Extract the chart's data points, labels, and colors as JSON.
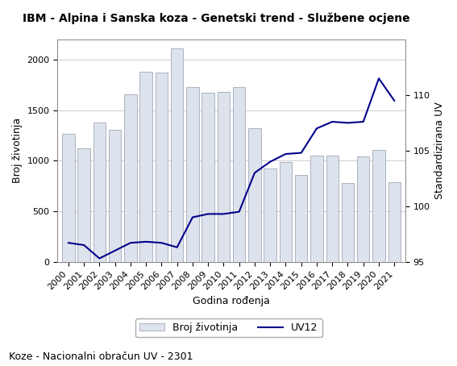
{
  "title": "IBM - Alpina i Sanska koza - Genetski trend - Službene ocjene",
  "xlabel": "Godina rođenja",
  "ylabel_left": "Broj životinja",
  "ylabel_right": "Standardizirana UV",
  "footer": "Koze - Nacionalni obračun UV - 2301",
  "years": [
    2000,
    2001,
    2002,
    2003,
    2004,
    2005,
    2006,
    2007,
    2008,
    2009,
    2010,
    2011,
    2012,
    2013,
    2014,
    2015,
    2016,
    2017,
    2018,
    2019,
    2020,
    2021
  ],
  "bar_values": [
    1270,
    1120,
    1380,
    1310,
    1660,
    1880,
    1870,
    2110,
    1730,
    1670,
    1680,
    1730,
    1320,
    920,
    990,
    860,
    1050,
    1050,
    780,
    1040,
    1110,
    790
  ],
  "uv12_values": [
    96.7,
    96.5,
    95.3,
    96.0,
    96.7,
    96.8,
    96.7,
    96.3,
    99.0,
    99.3,
    99.3,
    99.5,
    103.0,
    104.0,
    104.7,
    104.8,
    107.0,
    107.6,
    107.5,
    107.6,
    111.5,
    109.5
  ],
  "bar_color": "#dde3ec",
  "bar_edgecolor": "#a0a8b8",
  "line_color": "#00008B",
  "ylim_left": [
    0,
    2200
  ],
  "ylim_right": [
    95,
    115
  ],
  "yticks_left": [
    0,
    500,
    1000,
    1500,
    2000
  ],
  "yticks_right": [
    95,
    100,
    105,
    110
  ],
  "background_color": "#ffffff",
  "grid_color": "#cccccc",
  "title_fontsize": 10,
  "axis_fontsize": 9,
  "tick_fontsize": 8,
  "footer_fontsize": 9
}
